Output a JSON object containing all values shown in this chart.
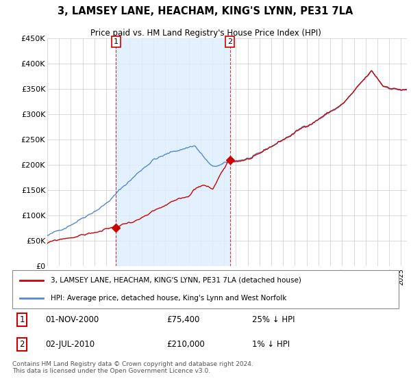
{
  "title": "3, LAMSEY LANE, HEACHAM, KING'S LYNN, PE31 7LA",
  "subtitle": "Price paid vs. HM Land Registry's House Price Index (HPI)",
  "legend_property": "3, LAMSEY LANE, HEACHAM, KING'S LYNN, PE31 7LA (detached house)",
  "legend_hpi": "HPI: Average price, detached house, King's Lynn and West Norfolk",
  "transaction1_date": "01-NOV-2000",
  "transaction1_price": "£75,400",
  "transaction1_hpi": "25% ↓ HPI",
  "transaction2_date": "02-JUL-2010",
  "transaction2_price": "£210,000",
  "transaction2_hpi": "1% ↓ HPI",
  "footnote": "Contains HM Land Registry data © Crown copyright and database right 2024.\nThis data is licensed under the Open Government Licence v3.0.",
  "property_color": "#cc0000",
  "hpi_color": "#5588cc",
  "shade_color": "#ddeeff",
  "vline_color": "#cc0000",
  "ylim": [
    0,
    450000
  ],
  "yticks": [
    0,
    50000,
    100000,
    150000,
    200000,
    250000,
    300000,
    350000,
    400000,
    450000
  ],
  "ytick_labels": [
    "£0",
    "£50K",
    "£100K",
    "£150K",
    "£200K",
    "£250K",
    "£300K",
    "£350K",
    "£400K",
    "£450K"
  ],
  "transaction1_x": 2000.83,
  "transaction1_y": 75400,
  "transaction2_x": 2010.5,
  "transaction2_y": 210000,
  "xmin": 1995,
  "xmax": 2025.5,
  "background_color": "#ffffff",
  "grid_color": "#cccccc"
}
